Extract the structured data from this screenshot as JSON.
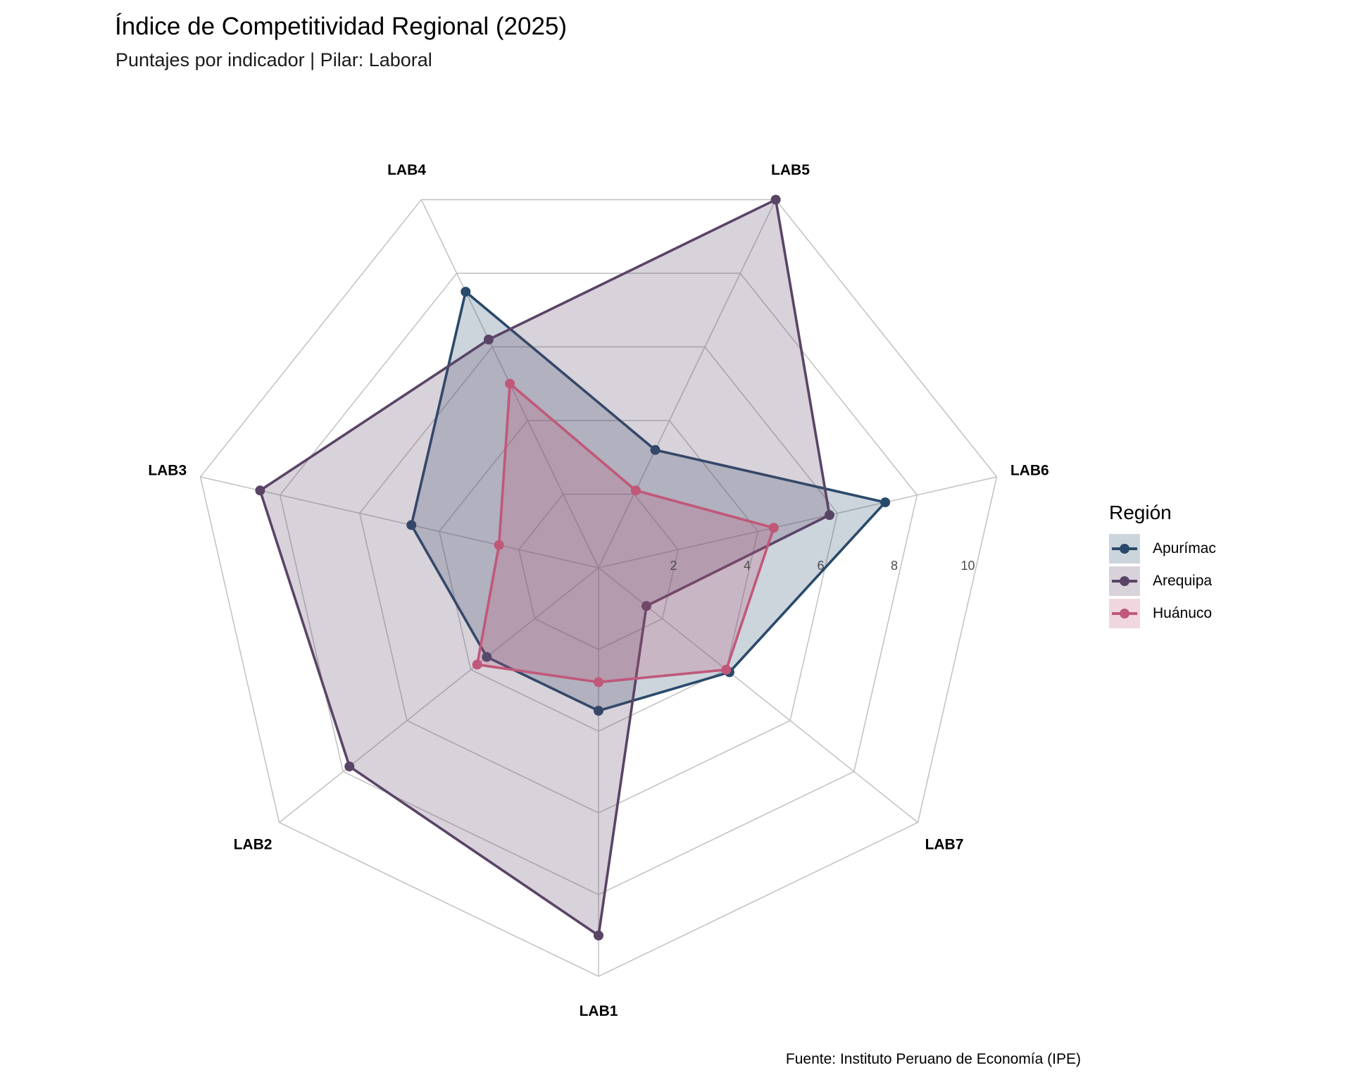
{
  "title": "Índice de Competitividad Regional (2025)",
  "subtitle": "Puntajes por indicador | Pilar: Laboral",
  "caption": "Fuente: Instituto Peruano de Economía (IPE)",
  "legend": {
    "title": "Región"
  },
  "chart_data": {
    "type": "radar",
    "axes": [
      "LAB1",
      "LAB2",
      "LAB3",
      "LAB4",
      "LAB5",
      "LAB6",
      "LAB7"
    ],
    "rlim": [
      0,
      10
    ],
    "ticks": [
      2,
      4,
      6,
      8,
      10
    ],
    "grid": true,
    "legend_position": "right",
    "series": [
      {
        "name": "Apurímac",
        "color": "#2a4a6b",
        "values": [
          3.5,
          3.5,
          4.7,
          7.5,
          3.2,
          7.2,
          4.1
        ]
      },
      {
        "name": "Arequipa",
        "color": "#5a4466",
        "values": [
          9.0,
          7.8,
          8.5,
          6.2,
          10.0,
          5.8,
          1.5
        ]
      },
      {
        "name": "Huánuco",
        "color": "#c0587a",
        "values": [
          2.8,
          3.8,
          2.5,
          5.0,
          2.1,
          4.4,
          4.0
        ]
      }
    ]
  }
}
